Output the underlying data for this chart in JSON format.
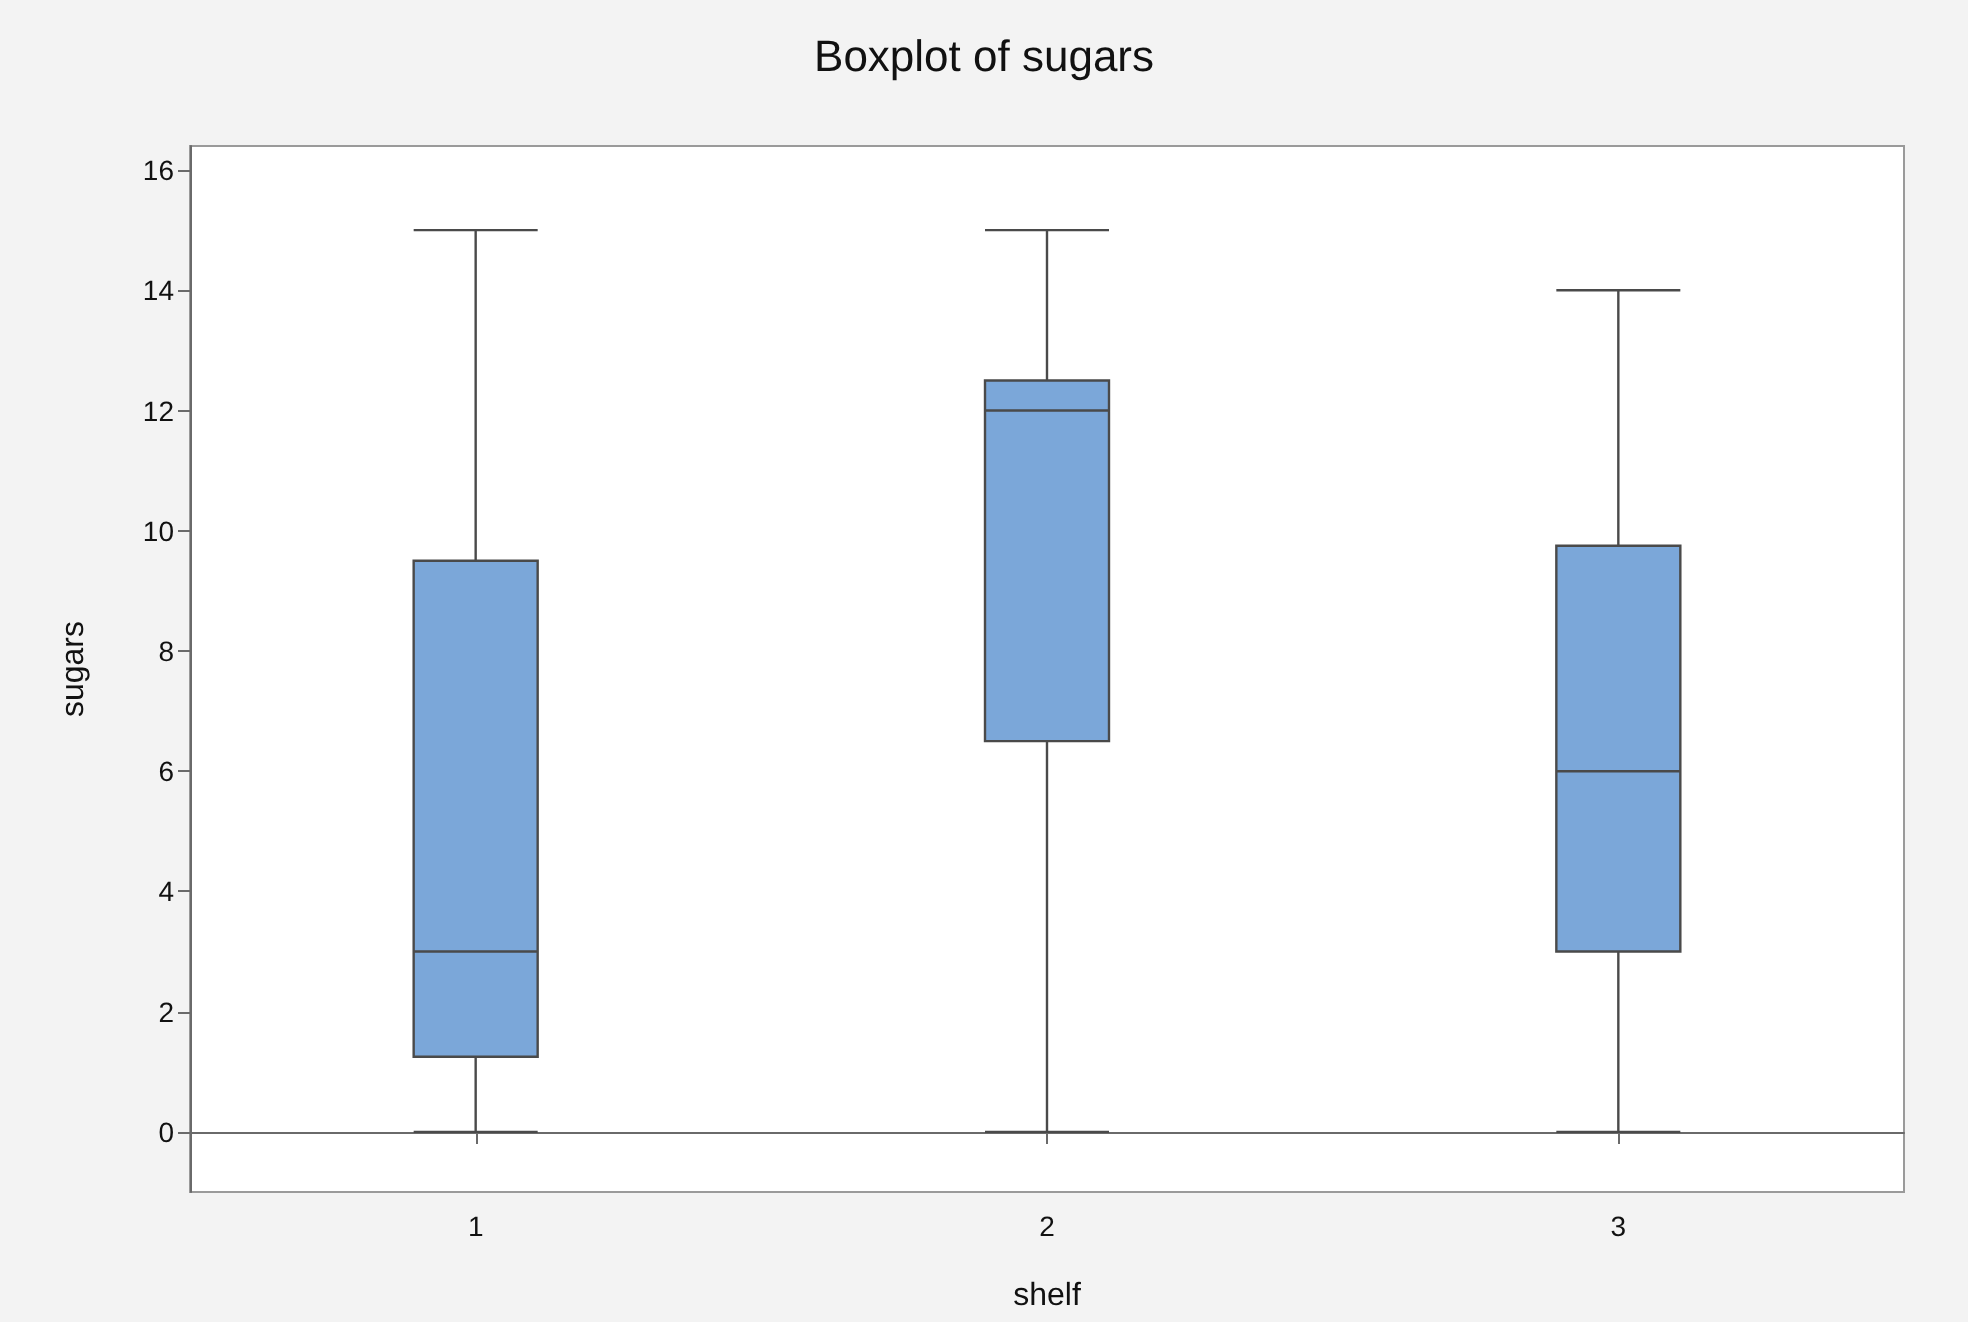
{
  "chart_data": {
    "type": "box",
    "title": "Boxplot of sugars",
    "xlabel": "shelf",
    "ylabel": "sugars",
    "categories": [
      "1",
      "2",
      "3"
    ],
    "boxes": [
      {
        "low": 0,
        "q1": 1.25,
        "median": 3,
        "q3": 9.5,
        "high": 15
      },
      {
        "low": 0,
        "q1": 6.5,
        "median": 12,
        "q3": 12.5,
        "high": 15
      },
      {
        "low": 0,
        "q1": 3,
        "median": 6,
        "q3": 9.75,
        "high": 14
      }
    ],
    "color": "#7ba7d9",
    "ylim": [
      -1,
      16.4
    ],
    "yticks": [
      0,
      2,
      4,
      6,
      8,
      10,
      12,
      14,
      16
    ]
  }
}
